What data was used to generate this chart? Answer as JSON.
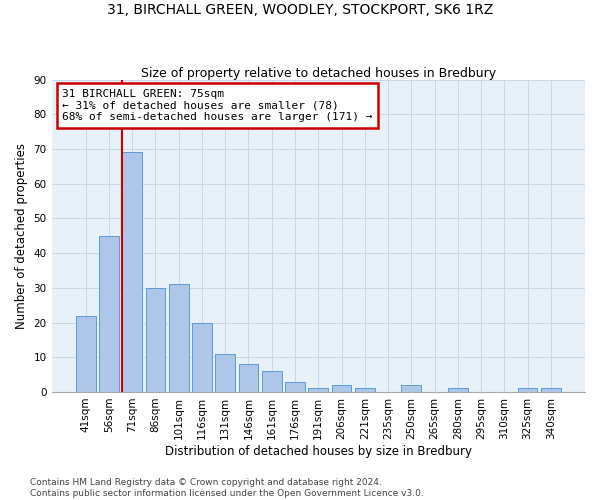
{
  "title": "31, BIRCHALL GREEN, WOODLEY, STOCKPORT, SK6 1RZ",
  "subtitle": "Size of property relative to detached houses in Bredbury",
  "xlabel": "Distribution of detached houses by size in Bredbury",
  "ylabel": "Number of detached properties",
  "bar_labels": [
    "41sqm",
    "56sqm",
    "71sqm",
    "86sqm",
    "101sqm",
    "116sqm",
    "131sqm",
    "146sqm",
    "161sqm",
    "176sqm",
    "191sqm",
    "206sqm",
    "221sqm",
    "235sqm",
    "250sqm",
    "265sqm",
    "280sqm",
    "295sqm",
    "310sqm",
    "325sqm",
    "340sqm"
  ],
  "bar_values": [
    22,
    45,
    69,
    30,
    31,
    20,
    11,
    8,
    6,
    3,
    1,
    2,
    1,
    0,
    2,
    0,
    1,
    0,
    0,
    1,
    1
  ],
  "bar_color": "#aec6e8",
  "bar_edge_color": "#5b9bd5",
  "vline_x_index": 2,
  "vline_color": "#cc0000",
  "annotation_box_color": "#cc0000",
  "marker_label_line1": "31 BIRCHALL GREEN: 75sqm",
  "marker_label_line2": "← 31% of detached houses are smaller (78)",
  "marker_label_line3": "68% of semi-detached houses are larger (171) →",
  "ylim": [
    0,
    90
  ],
  "yticks": [
    0,
    10,
    20,
    30,
    40,
    50,
    60,
    70,
    80,
    90
  ],
  "grid_color": "#c8d8e8",
  "background_color": "#e8f0f8",
  "footer": "Contains HM Land Registry data © Crown copyright and database right 2024.\nContains public sector information licensed under the Open Government Licence v3.0.",
  "title_fontsize": 10,
  "subtitle_fontsize": 9,
  "xlabel_fontsize": 8.5,
  "ylabel_fontsize": 8.5,
  "tick_fontsize": 7.5,
  "annotation_fontsize": 8,
  "footer_fontsize": 6.5
}
